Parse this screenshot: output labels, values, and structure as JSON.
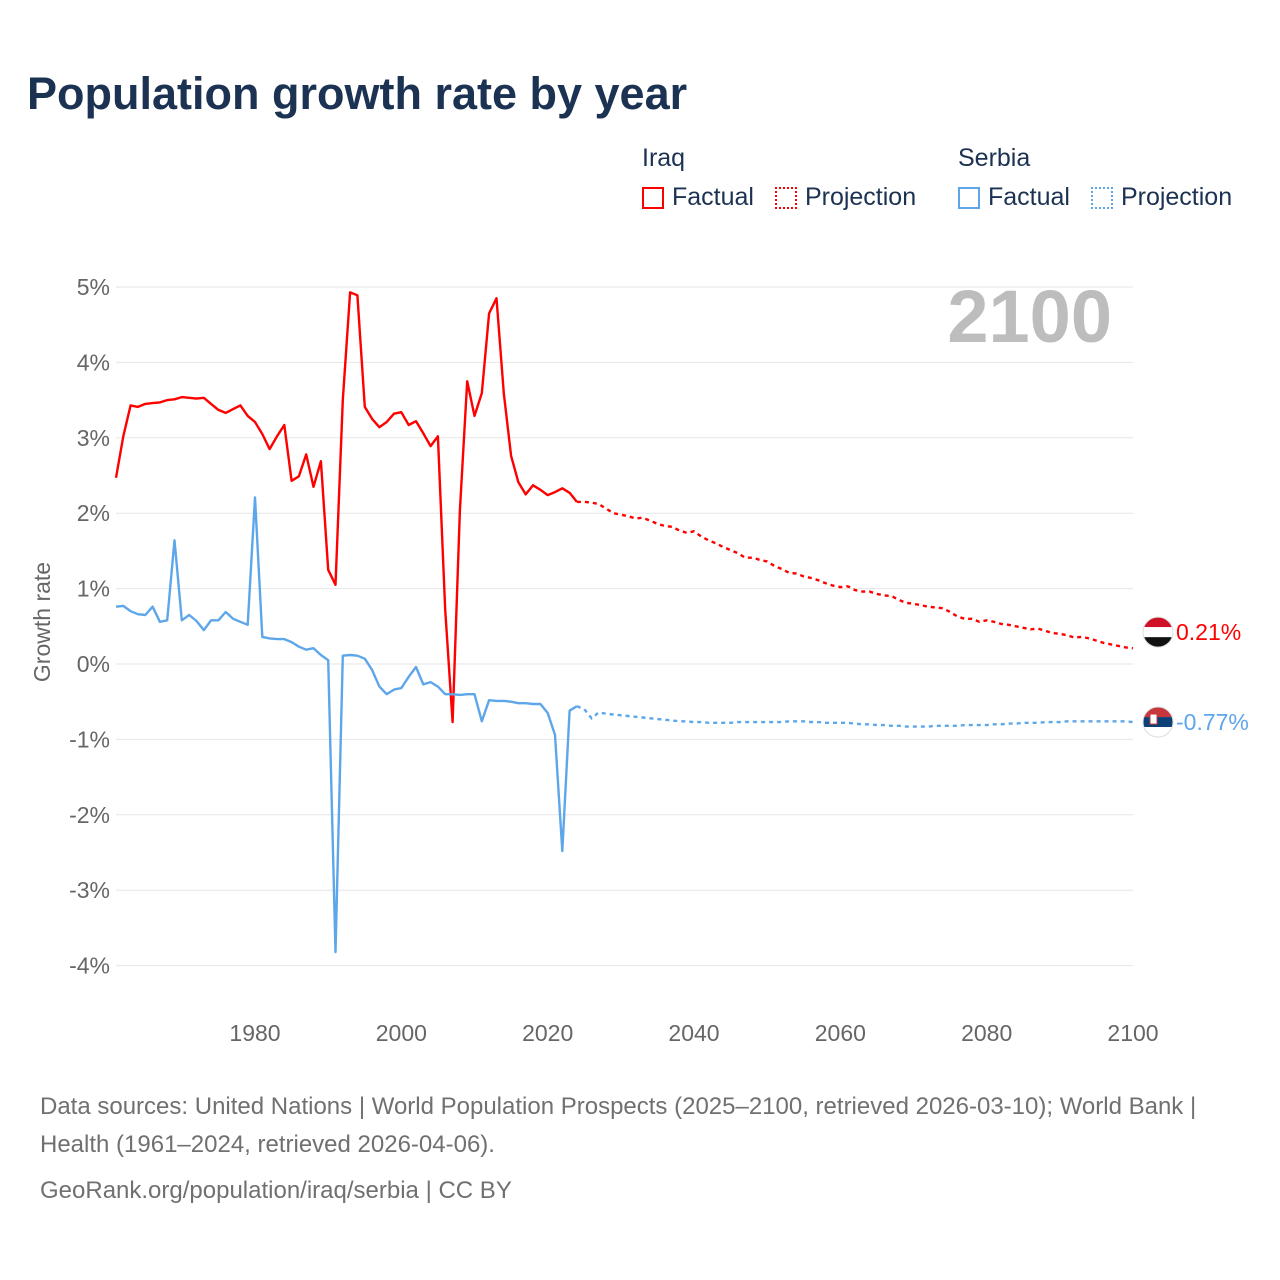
{
  "title": "Population growth rate by year",
  "legend": {
    "groups": [
      {
        "country": "Iraq",
        "factual": "Factual",
        "projection": "Projection",
        "color": "#ff0000"
      },
      {
        "country": "Serbia",
        "factual": "Factual",
        "projection": "Projection",
        "color": "#5ea6ea"
      }
    ]
  },
  "footer": {
    "sources": "Data sources: United Nations | World Population Prospects (2025–2100, retrieved 2026-03-10); World Bank | Health (1961–2024, retrieved 2026-04-06).",
    "credit": "GeoRank.org/population/iraq/serbia | CC BY"
  },
  "chart_data": {
    "type": "line",
    "title": "Population growth rate by year",
    "xlabel": "",
    "ylabel": "Growth rate",
    "year_watermark": "2100",
    "xlim": [
      1961,
      2100
    ],
    "ylim": [
      -4.5,
      5.2
    ],
    "x_ticks": [
      1980,
      2000,
      2020,
      2040,
      2060,
      2080,
      2100
    ],
    "x_tick_labels": [
      "1980",
      "2000",
      "2020",
      "2040",
      "2060",
      "2080",
      "2100"
    ],
    "y_ticks": [
      5,
      4,
      3,
      2,
      1,
      0,
      -1,
      -2,
      -3,
      -4
    ],
    "y_tick_labels": [
      "5%",
      "4%",
      "3%",
      "2%",
      "1%",
      "0%",
      "-1%",
      "-2%",
      "-3%",
      "-4%"
    ],
    "grid": true,
    "series": [
      {
        "name": "Iraq",
        "color": "#ff0000",
        "end_label": "0.21%",
        "flag": "iraq-flag",
        "factual": {
          "start_year": 1961,
          "values": [
            2.47,
            3.02,
            3.43,
            3.41,
            3.45,
            3.46,
            3.47,
            3.5,
            3.51,
            3.54,
            3.53,
            3.52,
            3.53,
            3.45,
            3.37,
            3.33,
            3.38,
            3.43,
            3.29,
            3.21,
            3.05,
            2.85,
            3.02,
            3.17,
            2.43,
            2.49,
            2.78,
            2.35,
            2.69,
            1.25,
            1.05,
            3.5,
            4.93,
            4.89,
            3.41,
            3.25,
            3.14,
            3.21,
            3.32,
            3.34,
            3.17,
            3.22,
            3.06,
            2.89,
            3.02,
            0.72,
            -0.77,
            2.04,
            3.75,
            3.29,
            3.59,
            4.65,
            4.85,
            3.59,
            2.76,
            2.41,
            2.25,
            2.37,
            2.31,
            2.24,
            2.28,
            2.33,
            2.27,
            2.15
          ]
        },
        "projection": {
          "start_year": 2024,
          "values": [
            2.15,
            2.15,
            2.14,
            2.12,
            2.06,
            2.0,
            1.98,
            1.96,
            1.93,
            1.94,
            1.9,
            1.86,
            1.83,
            1.82,
            1.77,
            1.74,
            1.76,
            1.69,
            1.64,
            1.6,
            1.55,
            1.51,
            1.47,
            1.41,
            1.41,
            1.38,
            1.36,
            1.3,
            1.26,
            1.21,
            1.2,
            1.16,
            1.14,
            1.11,
            1.07,
            1.04,
            1.02,
            1.03,
            0.98,
            0.96,
            0.96,
            0.93,
            0.91,
            0.9,
            0.85,
            0.81,
            0.8,
            0.78,
            0.76,
            0.75,
            0.74,
            0.69,
            0.63,
            0.6,
            0.6,
            0.56,
            0.58,
            0.56,
            0.53,
            0.52,
            0.5,
            0.48,
            0.46,
            0.47,
            0.44,
            0.41,
            0.4,
            0.38,
            0.35,
            0.36,
            0.34,
            0.31,
            0.28,
            0.26,
            0.24,
            0.22,
            0.21
          ]
        }
      },
      {
        "name": "Serbia",
        "color": "#5ea6ea",
        "end_label": "-0.77%",
        "flag": "serbia-flag",
        "factual": {
          "start_year": 1961,
          "values": [
            0.76,
            0.77,
            0.7,
            0.66,
            0.65,
            0.76,
            0.56,
            0.58,
            1.64,
            0.58,
            0.65,
            0.57,
            0.45,
            0.58,
            0.58,
            0.69,
            0.6,
            0.56,
            0.52,
            2.21,
            0.36,
            0.34,
            0.33,
            0.33,
            0.29,
            0.23,
            0.19,
            0.21,
            0.12,
            0.05,
            -3.82,
            0.11,
            0.12,
            0.11,
            0.07,
            -0.08,
            -0.3,
            -0.4,
            -0.34,
            -0.32,
            -0.17,
            -0.04,
            -0.27,
            -0.24,
            -0.3,
            -0.4,
            -0.4,
            -0.41,
            -0.4,
            -0.4,
            -0.76,
            -0.48,
            -0.49,
            -0.49,
            -0.5,
            -0.52,
            -0.52,
            -0.53,
            -0.53,
            -0.65,
            -0.94,
            -2.48,
            -0.62,
            -0.56
          ]
        },
        "projection": {
          "start_year": 2024,
          "values": [
            -0.56,
            -0.6,
            -0.72,
            -0.64,
            -0.66,
            -0.67,
            -0.68,
            -0.69,
            -0.7,
            -0.71,
            -0.72,
            -0.73,
            -0.74,
            -0.75,
            -0.76,
            -0.76,
            -0.77,
            -0.77,
            -0.78,
            -0.78,
            -0.78,
            -0.78,
            -0.77,
            -0.77,
            -0.77,
            -0.77,
            -0.77,
            -0.77,
            -0.77,
            -0.76,
            -0.76,
            -0.76,
            -0.77,
            -0.77,
            -0.78,
            -0.78,
            -0.78,
            -0.78,
            -0.79,
            -0.8,
            -0.8,
            -0.81,
            -0.81,
            -0.82,
            -0.82,
            -0.83,
            -0.83,
            -0.83,
            -0.83,
            -0.82,
            -0.82,
            -0.82,
            -0.82,
            -0.81,
            -0.81,
            -0.81,
            -0.81,
            -0.8,
            -0.8,
            -0.79,
            -0.79,
            -0.78,
            -0.78,
            -0.78,
            -0.77,
            -0.77,
            -0.77,
            -0.76,
            -0.76,
            -0.76,
            -0.76,
            -0.76,
            -0.76,
            -0.76,
            -0.76,
            -0.76,
            -0.77
          ]
        }
      }
    ]
  }
}
